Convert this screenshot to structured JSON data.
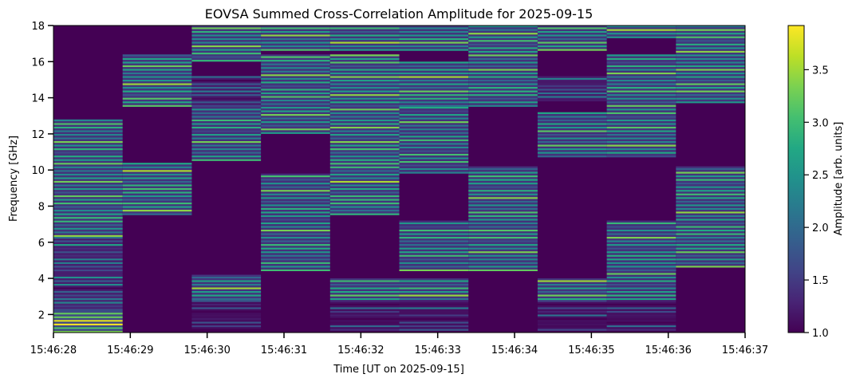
{
  "chart_data": {
    "type": "heatmap",
    "title": "EOVSA Summed Cross-Correlation Amplitude for 2025-09-15",
    "xlabel": "Time [UT on 2025-09-15]",
    "ylabel": "Frequency [GHz]",
    "colorbar_label": "Amplitude [arb. units]",
    "colormap": "viridis",
    "x_ticks": [
      "15:46:28",
      "15:46:29",
      "15:46:30",
      "15:46:31",
      "15:46:32",
      "15:46:33",
      "15:46:34",
      "15:46:35",
      "15:46:36",
      "15:46:37"
    ],
    "xlim": [
      "15:46:28",
      "15:46:37"
    ],
    "y_ticks": [
      2,
      4,
      6,
      8,
      10,
      12,
      14,
      16,
      18
    ],
    "ylim": [
      1,
      18
    ],
    "colorbar_ticks": [
      1.0,
      1.5,
      2.0,
      2.5,
      3.0,
      3.5
    ],
    "colorbar_range": [
      1.0,
      3.92
    ],
    "background_value": 1.0,
    "time_bins": [
      "15:46:28.0",
      "15:46:28.9",
      "15:46:29.8",
      "15:46:30.7",
      "15:46:31.6",
      "15:46:32.5",
      "15:46:33.4",
      "15:46:34.3",
      "15:46:35.2",
      "15:46:36.1",
      "15:46:37.0"
    ],
    "frequency_bands": [
      {
        "time_bin": 0,
        "f_lo": 6.3,
        "f_hi": 12.8,
        "level": 2.7
      },
      {
        "time_bin": 0,
        "f_lo": 3.0,
        "f_hi": 6.3,
        "level": 2.0
      },
      {
        "time_bin": 0,
        "f_lo": 2.2,
        "f_hi": 3.0,
        "level": 2.2
      },
      {
        "time_bin": 0,
        "f_lo": 1.0,
        "f_hi": 2.2,
        "level": 3.6
      },
      {
        "time_bin": 1,
        "f_lo": 7.5,
        "f_hi": 10.4,
        "level": 2.8
      },
      {
        "time_bin": 1,
        "f_lo": 13.5,
        "f_hi": 16.4,
        "level": 2.8
      },
      {
        "time_bin": 2,
        "f_lo": 10.5,
        "f_hi": 13.5,
        "level": 2.6
      },
      {
        "time_bin": 2,
        "f_lo": 13.5,
        "f_hi": 15.2,
        "level": 1.9
      },
      {
        "time_bin": 2,
        "f_lo": 16.0,
        "f_hi": 18.0,
        "level": 2.8
      },
      {
        "time_bin": 2,
        "f_lo": 2.8,
        "f_hi": 4.2,
        "level": 2.8
      },
      {
        "time_bin": 2,
        "f_lo": 1.1,
        "f_hi": 2.8,
        "level": 1.4
      },
      {
        "time_bin": 3,
        "f_lo": 4.4,
        "f_hi": 9.8,
        "level": 2.6
      },
      {
        "time_bin": 3,
        "f_lo": 12.0,
        "f_hi": 16.4,
        "level": 2.7
      },
      {
        "time_bin": 3,
        "f_lo": 16.6,
        "f_hi": 18.0,
        "level": 2.8
      },
      {
        "time_bin": 4,
        "f_lo": 7.5,
        "f_hi": 13.5,
        "level": 2.8
      },
      {
        "time_bin": 4,
        "f_lo": 13.5,
        "f_hi": 16.4,
        "level": 2.8
      },
      {
        "time_bin": 4,
        "f_lo": 16.6,
        "f_hi": 18.0,
        "level": 2.8
      },
      {
        "time_bin": 4,
        "f_lo": 2.8,
        "f_hi": 4.0,
        "level": 2.8
      },
      {
        "time_bin": 4,
        "f_lo": 1.1,
        "f_hi": 2.8,
        "level": 1.5
      },
      {
        "time_bin": 5,
        "f_lo": 4.4,
        "f_hi": 7.2,
        "level": 2.6
      },
      {
        "time_bin": 5,
        "f_lo": 9.8,
        "f_hi": 13.5,
        "level": 2.6
      },
      {
        "time_bin": 5,
        "f_lo": 13.5,
        "f_hi": 16.0,
        "level": 2.8
      },
      {
        "time_bin": 5,
        "f_lo": 16.6,
        "f_hi": 18.0,
        "level": 2.8
      },
      {
        "time_bin": 5,
        "f_lo": 2.8,
        "f_hi": 4.0,
        "level": 2.8
      },
      {
        "time_bin": 5,
        "f_lo": 1.1,
        "f_hi": 2.8,
        "level": 1.5
      },
      {
        "time_bin": 6,
        "f_lo": 4.4,
        "f_hi": 10.2,
        "level": 2.7
      },
      {
        "time_bin": 6,
        "f_lo": 13.5,
        "f_hi": 16.7,
        "level": 2.7
      },
      {
        "time_bin": 6,
        "f_lo": 16.7,
        "f_hi": 18.0,
        "level": 2.8
      },
      {
        "time_bin": 7,
        "f_lo": 10.7,
        "f_hi": 13.2,
        "level": 2.6
      },
      {
        "time_bin": 7,
        "f_lo": 13.8,
        "f_hi": 15.2,
        "level": 1.9
      },
      {
        "time_bin": 7,
        "f_lo": 16.6,
        "f_hi": 18.0,
        "level": 2.8
      },
      {
        "time_bin": 7,
        "f_lo": 2.8,
        "f_hi": 4.0,
        "level": 2.8
      },
      {
        "time_bin": 7,
        "f_lo": 1.1,
        "f_hi": 2.8,
        "level": 1.5
      },
      {
        "time_bin": 8,
        "f_lo": 4.4,
        "f_hi": 7.2,
        "level": 2.6
      },
      {
        "time_bin": 8,
        "f_lo": 10.7,
        "f_hi": 16.4,
        "level": 2.7
      },
      {
        "time_bin": 8,
        "f_lo": 17.3,
        "f_hi": 18.0,
        "level": 2.8
      },
      {
        "time_bin": 8,
        "f_lo": 2.8,
        "f_hi": 4.7,
        "level": 2.6
      },
      {
        "time_bin": 8,
        "f_lo": 1.1,
        "f_hi": 2.8,
        "level": 1.5
      },
      {
        "time_bin": 9,
        "f_lo": 4.6,
        "f_hi": 10.2,
        "level": 2.7
      },
      {
        "time_bin": 9,
        "f_lo": 13.7,
        "f_hi": 18.0,
        "level": 2.8
      }
    ]
  }
}
